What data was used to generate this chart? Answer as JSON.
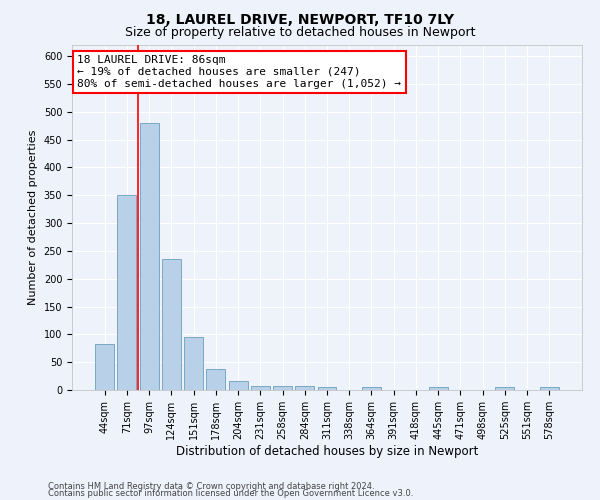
{
  "title1": "18, LAUREL DRIVE, NEWPORT, TF10 7LY",
  "title2": "Size of property relative to detached houses in Newport",
  "xlabel": "Distribution of detached houses by size in Newport",
  "ylabel": "Number of detached properties",
  "categories": [
    "44sqm",
    "71sqm",
    "97sqm",
    "124sqm",
    "151sqm",
    "178sqm",
    "204sqm",
    "231sqm",
    "258sqm",
    "284sqm",
    "311sqm",
    "338sqm",
    "364sqm",
    "391sqm",
    "418sqm",
    "445sqm",
    "471sqm",
    "498sqm",
    "525sqm",
    "551sqm",
    "578sqm"
  ],
  "values": [
    82,
    350,
    480,
    235,
    95,
    37,
    17,
    8,
    8,
    8,
    5,
    0,
    5,
    0,
    0,
    5,
    0,
    0,
    5,
    0,
    5
  ],
  "bar_color": "#b8d0e8",
  "bar_edge_color": "#6a9fc0",
  "annotation_text": "18 LAUREL DRIVE: 86sqm\n← 19% of detached houses are smaller (247)\n80% of semi-detached houses are larger (1,052) →",
  "annotation_box_color": "white",
  "annotation_box_edge_color": "red",
  "ylim": [
    0,
    620
  ],
  "yticks": [
    0,
    50,
    100,
    150,
    200,
    250,
    300,
    350,
    400,
    450,
    500,
    550,
    600
  ],
  "footer_line1": "Contains HM Land Registry data © Crown copyright and database right 2024.",
  "footer_line2": "Contains public sector information licensed under the Open Government Licence v3.0.",
  "background_color": "#eef2fa",
  "grid_color": "#ffffff",
  "title1_fontsize": 10,
  "title2_fontsize": 9,
  "xlabel_fontsize": 8.5,
  "ylabel_fontsize": 8,
  "tick_fontsize": 7,
  "annotation_fontsize": 8,
  "footer_fontsize": 6
}
